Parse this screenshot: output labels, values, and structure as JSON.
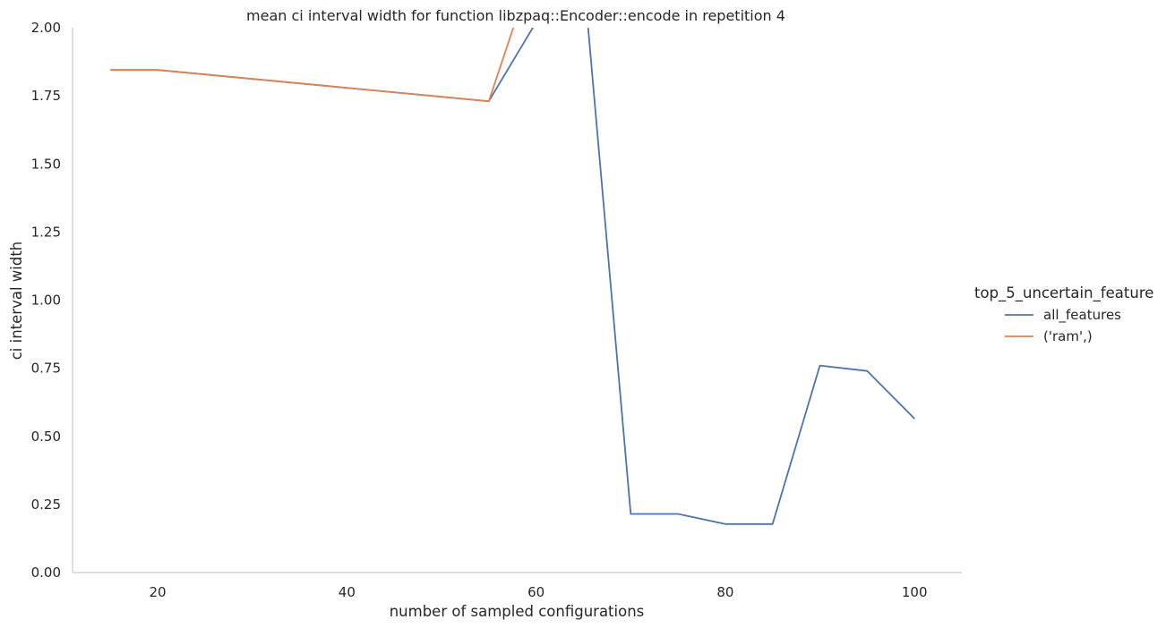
{
  "chart_data": {
    "type": "line",
    "title": "mean ci interval width for function libzpaq::Encoder::encode in repetition 4",
    "xlabel": "number of sampled configurations",
    "ylabel": "ci interval width",
    "xlim": [
      11,
      105
    ],
    "ylim": [
      0,
      2.0
    ],
    "x_ticks": [
      20,
      40,
      60,
      80,
      100
    ],
    "y_ticks": [
      0.0,
      0.25,
      0.5,
      0.75,
      1.0,
      1.25,
      1.5,
      1.75,
      2.0
    ],
    "x_tick_labels": [
      "20",
      "40",
      "60",
      "80",
      "100"
    ],
    "y_tick_labels": [
      "0.00",
      "0.25",
      "0.50",
      "0.75",
      "1.00",
      "1.25",
      "1.50",
      "1.75",
      "2.00"
    ],
    "grid": false,
    "legend_title": "top_5_uncertain_feature",
    "legend_position": "right",
    "series": [
      {
        "name": "all_features",
        "color": "#4c72b0",
        "x": [
          15,
          20,
          55,
          60,
          65,
          70,
          75,
          80,
          85,
          90,
          95,
          100
        ],
        "y": [
          1.845,
          1.845,
          1.73,
          2.02,
          2.2,
          0.215,
          0.215,
          0.178,
          0.178,
          0.76,
          0.74,
          0.565
        ]
      },
      {
        "name": "('ram',)",
        "color": "#dd8452",
        "x": [
          15,
          20,
          55,
          60
        ],
        "y": [
          1.845,
          1.845,
          1.73,
          2.25
        ]
      }
    ]
  }
}
